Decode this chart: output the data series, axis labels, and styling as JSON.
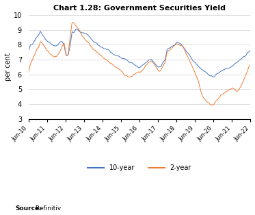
{
  "title": "Chart 1.28: Government Securities Yield",
  "ylabel": "per cent",
  "source_bold": "Source:",
  "source_rest": " Refinitiv",
  "ylim": [
    3,
    10
  ],
  "yticks": [
    3,
    4,
    5,
    6,
    7,
    8,
    9,
    10
  ],
  "line_10yr_color": "#4472C4",
  "line_2yr_color": "#ED7D31",
  "legend_10yr": "10-year",
  "legend_2yr": "2-year",
  "x_labels": [
    "Jun-10",
    "Jun-11",
    "Jun-12",
    "Jun-13",
    "Jun-14",
    "Jun-15",
    "Jun-16",
    "Jun-17",
    "Jun-18",
    "Jun-19",
    "Jun-20",
    "Jun-21",
    "Jun-22"
  ],
  "x_positions": [
    0,
    12,
    24,
    36,
    48,
    60,
    72,
    84,
    96,
    108,
    120,
    132,
    144
  ],
  "ten_year_knots": [
    7.6,
    7.95,
    8.05,
    8.3,
    8.5,
    8.65,
    8.9,
    8.7,
    8.5,
    8.3,
    8.2,
    8.1,
    8.0,
    7.9,
    7.9,
    8.05,
    8.2,
    8.2,
    7.95,
    7.3,
    7.3,
    7.9,
    8.85,
    8.8,
    9.05,
    9.05,
    8.85,
    8.8,
    8.8,
    8.75,
    8.65,
    8.5,
    8.3,
    8.2,
    8.1,
    8.0,
    7.9,
    7.85,
    7.75,
    7.7,
    7.65,
    7.5,
    7.45,
    7.35,
    7.3,
    7.25,
    7.2,
    7.1,
    7.05,
    7.0,
    6.95,
    6.85,
    6.8,
    6.7,
    6.6,
    6.5,
    6.45,
    6.55,
    6.65,
    6.75,
    6.85,
    6.95,
    7.0,
    6.85,
    6.7,
    6.55,
    6.5,
    6.6,
    6.8,
    7.0,
    7.65,
    7.75,
    7.8,
    7.9,
    8.05,
    8.15,
    8.1,
    8.05,
    7.9,
    7.7,
    7.5,
    7.3,
    7.1,
    6.95,
    6.8,
    6.7,
    6.55,
    6.4,
    6.3,
    6.2,
    6.1,
    6.0,
    5.85,
    5.85,
    5.9,
    6.0,
    6.1,
    6.2,
    6.3,
    6.35,
    6.4,
    6.45,
    6.5,
    6.6,
    6.7,
    6.8,
    6.9,
    7.0,
    7.1,
    7.2,
    7.35,
    7.5,
    7.6
  ],
  "two_year_knots": [
    6.1,
    6.7,
    7.0,
    7.3,
    7.6,
    7.8,
    8.2,
    8.05,
    7.85,
    7.65,
    7.55,
    7.4,
    7.3,
    7.2,
    7.15,
    7.35,
    7.6,
    7.9,
    8.15,
    7.3,
    7.3,
    8.5,
    9.5,
    9.45,
    9.3,
    9.1,
    8.9,
    8.65,
    8.45,
    8.3,
    8.15,
    8.0,
    7.85,
    7.7,
    7.55,
    7.4,
    7.3,
    7.2,
    7.1,
    7.0,
    6.9,
    6.8,
    6.7,
    6.6,
    6.5,
    6.4,
    6.3,
    6.15,
    6.05,
    5.95,
    5.85,
    5.8,
    5.85,
    5.95,
    6.05,
    6.1,
    6.15,
    6.2,
    6.3,
    6.5,
    6.65,
    6.8,
    6.9,
    6.75,
    6.55,
    6.35,
    6.2,
    6.3,
    6.6,
    6.85,
    7.5,
    7.65,
    7.7,
    7.8,
    7.95,
    8.05,
    8.05,
    8.0,
    7.85,
    7.6,
    7.3,
    7.0,
    6.7,
    6.4,
    6.1,
    5.8,
    5.4,
    4.9,
    4.5,
    4.3,
    4.15,
    4.05,
    3.95,
    3.95,
    4.1,
    4.25,
    4.4,
    4.55,
    4.65,
    4.75,
    4.85,
    4.95,
    5.0,
    5.05,
    4.95,
    4.85,
    4.9,
    5.1,
    5.4,
    5.7,
    6.1,
    6.4,
    6.6
  ]
}
